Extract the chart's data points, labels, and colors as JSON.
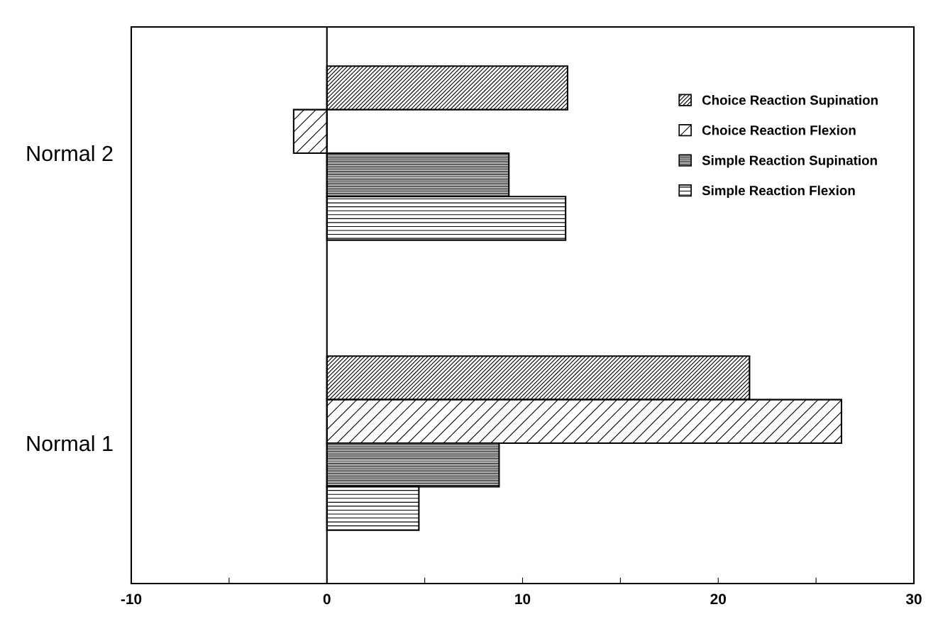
{
  "chart_data": {
    "type": "bar",
    "orientation": "horizontal",
    "categories": [
      "Normal 2",
      "Normal 1"
    ],
    "series": [
      {
        "name": "Choice Reaction Supination",
        "color": "#000000",
        "values": [
          12.3,
          21.6
        ]
      },
      {
        "name": "Choice Reaction Flexion",
        "color": "#000000",
        "values": [
          -1.7,
          26.3
        ]
      },
      {
        "name": "Simple Reaction Supination",
        "color": "#000000",
        "values": [
          9.3,
          8.8
        ]
      },
      {
        "name": "Simple Reaction Flexion",
        "color": "#000000",
        "values": [
          12.2,
          4.7
        ]
      }
    ],
    "xlim": [
      -10,
      30
    ],
    "xticks": [
      -10,
      {
        "value": -5,
        "label": null
      },
      0,
      {
        "value": 5,
        "label": null
      },
      10,
      {
        "value": 15,
        "label": null
      },
      20,
      {
        "value": 25,
        "label": null
      },
      30
    ],
    "ref_lines": [
      {
        "axis": "x",
        "value": 0,
        "label": null,
        "color": "#000000"
      }
    ],
    "legend": "top right",
    "grid": false
  }
}
